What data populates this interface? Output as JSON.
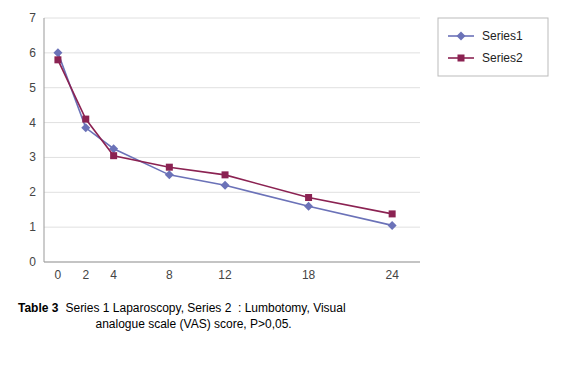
{
  "chart_data": {
    "type": "line",
    "x": [
      0,
      2,
      4,
      8,
      12,
      18,
      24
    ],
    "series": [
      {
        "name": "Series1",
        "color": "#6b72b8",
        "marker": "diamond",
        "values": [
          6.0,
          3.85,
          3.25,
          2.5,
          2.2,
          1.6,
          1.05
        ]
      },
      {
        "name": "Series2",
        "color": "#8b2252",
        "marker": "square",
        "values": [
          5.8,
          4.1,
          3.05,
          2.72,
          2.5,
          1.85,
          1.38
        ]
      }
    ],
    "xlim": [
      -1,
      26
    ],
    "xticks": [
      0,
      2,
      4,
      8,
      12,
      18,
      24
    ],
    "ylim": [
      0,
      7
    ],
    "yticks": [
      0,
      1,
      2,
      3,
      4,
      5,
      6,
      7
    ],
    "grid": "y",
    "legend": "right",
    "annotations": [
      "Table 3",
      "  Series 1 Laparoscopy, Series 2  : Lumbotomy, Visual\n           analogue scale (VAS) score, P>0,05."
    ]
  }
}
